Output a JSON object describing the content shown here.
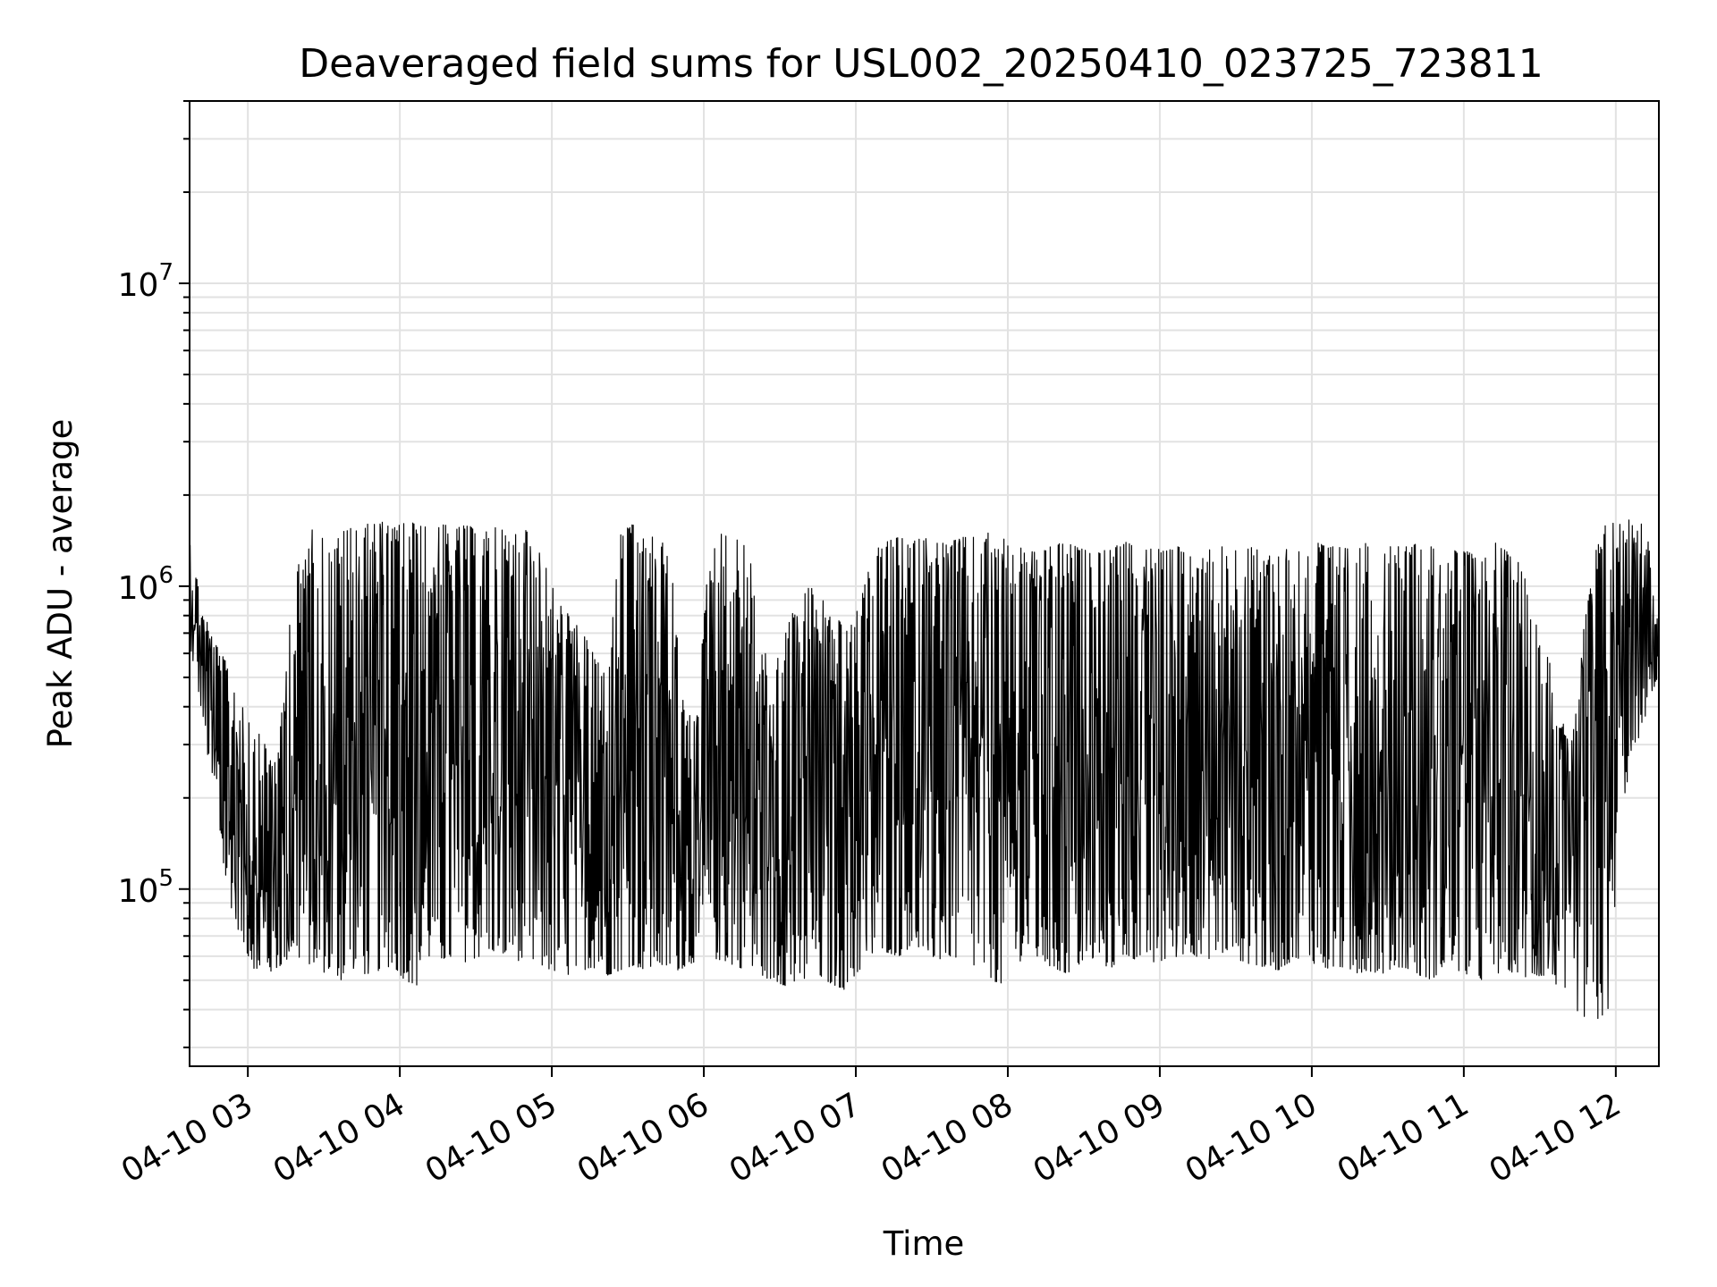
{
  "chart_data": {
    "type": "line",
    "title": "Deaveraged field sums for USL002_20250410_023725_723811",
    "xlabel": "Time",
    "ylabel": "Peak ADU - average",
    "x_scale": "time",
    "y_scale": "log",
    "grid": true,
    "line_color": "#000000",
    "xlim": [
      "2025-04-10T02:37",
      "2025-04-10T12:17"
    ],
    "ylim": [
      26000,
      40000000
    ],
    "x_ticks": [
      {
        "t": "2025-04-10T03:00",
        "label": "04-10 03"
      },
      {
        "t": "2025-04-10T04:00",
        "label": "04-10 04"
      },
      {
        "t": "2025-04-10T05:00",
        "label": "04-10 05"
      },
      {
        "t": "2025-04-10T06:00",
        "label": "04-10 06"
      },
      {
        "t": "2025-04-10T07:00",
        "label": "04-10 07"
      },
      {
        "t": "2025-04-10T08:00",
        "label": "04-10 08"
      },
      {
        "t": "2025-04-10T09:00",
        "label": "04-10 09"
      },
      {
        "t": "2025-04-10T10:00",
        "label": "04-10 10"
      },
      {
        "t": "2025-04-10T11:00",
        "label": "04-10 11"
      },
      {
        "t": "2025-04-10T12:00",
        "label": "04-10 12"
      }
    ],
    "y_ticks": [
      {
        "value": 100000,
        "base": "10",
        "exp": "5"
      },
      {
        "value": 1000000,
        "base": "10",
        "exp": "6"
      },
      {
        "value": 10000000,
        "base": "10",
        "exp": "7"
      }
    ],
    "series": [
      {
        "x": [
          "2025-04-10T02:37",
          "2025-04-10T02:42",
          "2025-04-10T02:47",
          "2025-04-10T02:52",
          "2025-04-10T02:57",
          "2025-04-10T03:02",
          "2025-04-10T03:07",
          "2025-04-10T03:12",
          "2025-04-10T03:17",
          "2025-04-10T03:22",
          "2025-04-10T03:27",
          "2025-04-10T03:32",
          "2025-04-10T03:37",
          "2025-04-10T03:42",
          "2025-04-10T03:47",
          "2025-04-10T03:52",
          "2025-04-10T03:57",
          "2025-04-10T04:02",
          "2025-04-10T04:07",
          "2025-04-10T04:12",
          "2025-04-10T04:17",
          "2025-04-10T04:22",
          "2025-04-10T04:27",
          "2025-04-10T04:32",
          "2025-04-10T04:37",
          "2025-04-10T04:42",
          "2025-04-10T04:47",
          "2025-04-10T04:52",
          "2025-04-10T04:57",
          "2025-04-10T05:02",
          "2025-04-10T05:07",
          "2025-04-10T05:12",
          "2025-04-10T05:17",
          "2025-04-10T05:22",
          "2025-04-10T05:27",
          "2025-04-10T05:32",
          "2025-04-10T05:37",
          "2025-04-10T05:42",
          "2025-04-10T05:47",
          "2025-04-10T05:52",
          "2025-04-10T05:57",
          "2025-04-10T06:02",
          "2025-04-10T06:07",
          "2025-04-10T06:12",
          "2025-04-10T06:17",
          "2025-04-10T06:22",
          "2025-04-10T06:27",
          "2025-04-10T06:32",
          "2025-04-10T06:37",
          "2025-04-10T06:42",
          "2025-04-10T06:47",
          "2025-04-10T06:52",
          "2025-04-10T06:57",
          "2025-04-10T07:02",
          "2025-04-10T07:07",
          "2025-04-10T07:12",
          "2025-04-10T07:17",
          "2025-04-10T07:22",
          "2025-04-10T07:27",
          "2025-04-10T07:32",
          "2025-04-10T07:37",
          "2025-04-10T07:42",
          "2025-04-10T07:47",
          "2025-04-10T07:52",
          "2025-04-10T07:57",
          "2025-04-10T08:02",
          "2025-04-10T08:07",
          "2025-04-10T08:12",
          "2025-04-10T08:17",
          "2025-04-10T08:22",
          "2025-04-10T08:27",
          "2025-04-10T08:32",
          "2025-04-10T08:37",
          "2025-04-10T08:42",
          "2025-04-10T08:47",
          "2025-04-10T08:52",
          "2025-04-10T08:57",
          "2025-04-10T09:02",
          "2025-04-10T09:07",
          "2025-04-10T09:12",
          "2025-04-10T09:17",
          "2025-04-10T09:22",
          "2025-04-10T09:27",
          "2025-04-10T09:32",
          "2025-04-10T09:37",
          "2025-04-10T09:42",
          "2025-04-10T09:47",
          "2025-04-10T09:52",
          "2025-04-10T09:57",
          "2025-04-10T10:02",
          "2025-04-10T10:07",
          "2025-04-10T10:12",
          "2025-04-10T10:17",
          "2025-04-10T10:22",
          "2025-04-10T10:27",
          "2025-04-10T10:32",
          "2025-04-10T10:37",
          "2025-04-10T10:42",
          "2025-04-10T10:47",
          "2025-04-10T10:52",
          "2025-04-10T10:57",
          "2025-04-10T11:02",
          "2025-04-10T11:07",
          "2025-04-10T11:12",
          "2025-04-10T11:17",
          "2025-04-10T11:22",
          "2025-04-10T11:27",
          "2025-04-10T11:32",
          "2025-04-10T11:37",
          "2025-04-10T11:42",
          "2025-04-10T11:47",
          "2025-04-10T11:52",
          "2025-04-10T11:57",
          "2025-04-10T12:02",
          "2025-04-10T12:07",
          "2025-04-10T12:12",
          "2025-04-10T12:17"
        ],
        "y_low": [
          650000,
          380000,
          180000,
          95000,
          70000,
          55000,
          52000,
          55000,
          60000,
          58000,
          55000,
          52000,
          50000,
          55000,
          52000,
          54000,
          56000,
          50000,
          48000,
          60000,
          58000,
          56000,
          58000,
          60000,
          62000,
          60000,
          58000,
          56000,
          55000,
          53000,
          52000,
          54000,
          55000,
          52000,
          54000,
          56000,
          54000,
          55000,
          53000,
          55000,
          58000,
          60000,
          58000,
          56000,
          54000,
          52000,
          50000,
          48000,
          46000,
          52000,
          50000,
          48000,
          46000,
          55000,
          60000,
          62000,
          60000,
          65000,
          62000,
          58000,
          60000,
          58000,
          55000,
          52000,
          48000,
          55000,
          60000,
          58000,
          55000,
          52000,
          55000,
          58000,
          56000,
          55000,
          60000,
          58000,
          56000,
          58000,
          60000,
          62000,
          58000,
          60000,
          62000,
          58000,
          56000,
          55000,
          54000,
          58000,
          60000,
          56000,
          54000,
          55000,
          52000,
          54000,
          52000,
          55000,
          55000,
          52000,
          50000,
          55000,
          54000,
          52000,
          50000,
          52000,
          54000,
          52000,
          50000,
          52000,
          48000,
          42000,
          38000,
          36000,
          40000,
          180000,
          280000,
          380000,
          520000
        ],
        "y_high": [
          1450000,
          850000,
          650000,
          550000,
          420000,
          350000,
          300000,
          280000,
          900000,
          1400000,
          1600000,
          1300000,
          1500000,
          1600000,
          1600000,
          1650000,
          1550000,
          1650000,
          1600000,
          1550000,
          1600000,
          1550000,
          1600000,
          1450000,
          1600000,
          1500000,
          1500000,
          1550000,
          1200000,
          900000,
          800000,
          700000,
          600000,
          500000,
          1500000,
          1600000,
          1400000,
          1500000,
          1200000,
          400000,
          350000,
          1300000,
          1500000,
          1400000,
          1500000,
          700000,
          500000,
          700000,
          900000,
          1000000,
          900000,
          800000,
          700000,
          900000,
          1300000,
          1400000,
          1450000,
          1400000,
          1450000,
          1400000,
          1400000,
          1450000,
          1450000,
          1500000,
          1450000,
          1400000,
          1300000,
          1300000,
          1350000,
          1400000,
          1350000,
          1300000,
          1300000,
          1350000,
          1400000,
          1300000,
          1350000,
          1300000,
          1350000,
          1300000,
          1300000,
          1350000,
          1350000,
          1300000,
          1350000,
          1300000,
          1300000,
          1350000,
          1300000,
          1400000,
          1350000,
          1350000,
          1300000,
          1400000,
          1350000,
          1350000,
          1350000,
          1400000,
          1350000,
          1400000,
          1300000,
          1300000,
          1200000,
          1400000,
          1300000,
          1200000,
          900000,
          700000,
          400000,
          300000,
          700000,
          1300000,
          1700000,
          1600000,
          1700000,
          1600000,
          700000
        ]
      }
    ]
  }
}
